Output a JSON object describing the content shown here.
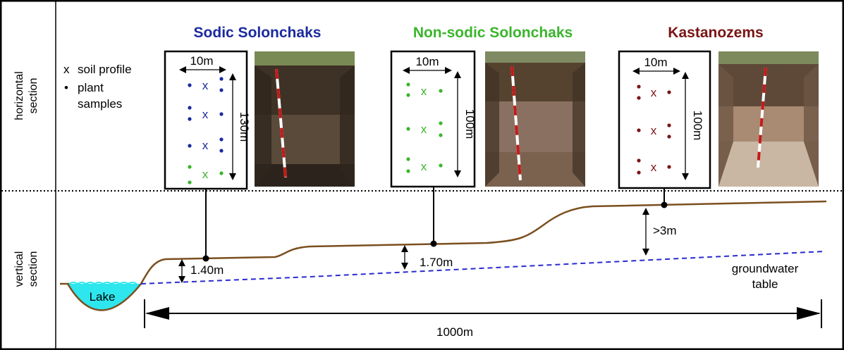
{
  "side_labels": {
    "top_line1": "horizontal",
    "top_line2": "section",
    "bottom_line1": "vertical",
    "bottom_line2": "section"
  },
  "legend": {
    "cross_symbol": "x",
    "cross_text": "soil profile",
    "dot_symbol": "•",
    "dot_text_1": "plant",
    "dot_text_2": "samples"
  },
  "sites": [
    {
      "title": "Sodic Solonchaks",
      "color": "#1c2a9e",
      "width_label": "10m",
      "length_label": "130m",
      "depth_label": "1.40m",
      "marker": "x"
    },
    {
      "title": "Non-sodic Solonchaks",
      "color": "#3bb52c",
      "width_label": "10m",
      "length_label": "100m",
      "depth_label": "1.70m",
      "marker": "x"
    },
    {
      "title": "Kastanozems",
      "color": "#7a1414",
      "width_label": "10m",
      "length_label": "100m",
      "depth_label": ">3m",
      "marker": "x"
    }
  ],
  "lake_label": "Lake",
  "groundwater_line1": "groundwater",
  "groundwater_line2": "table",
  "distance_label": "1000m",
  "colors": {
    "ground": "#7a4f1e",
    "water_table": "#2a2ad0",
    "lake_fill": "#2ee6ee",
    "green_sample": "#3bb52c"
  }
}
